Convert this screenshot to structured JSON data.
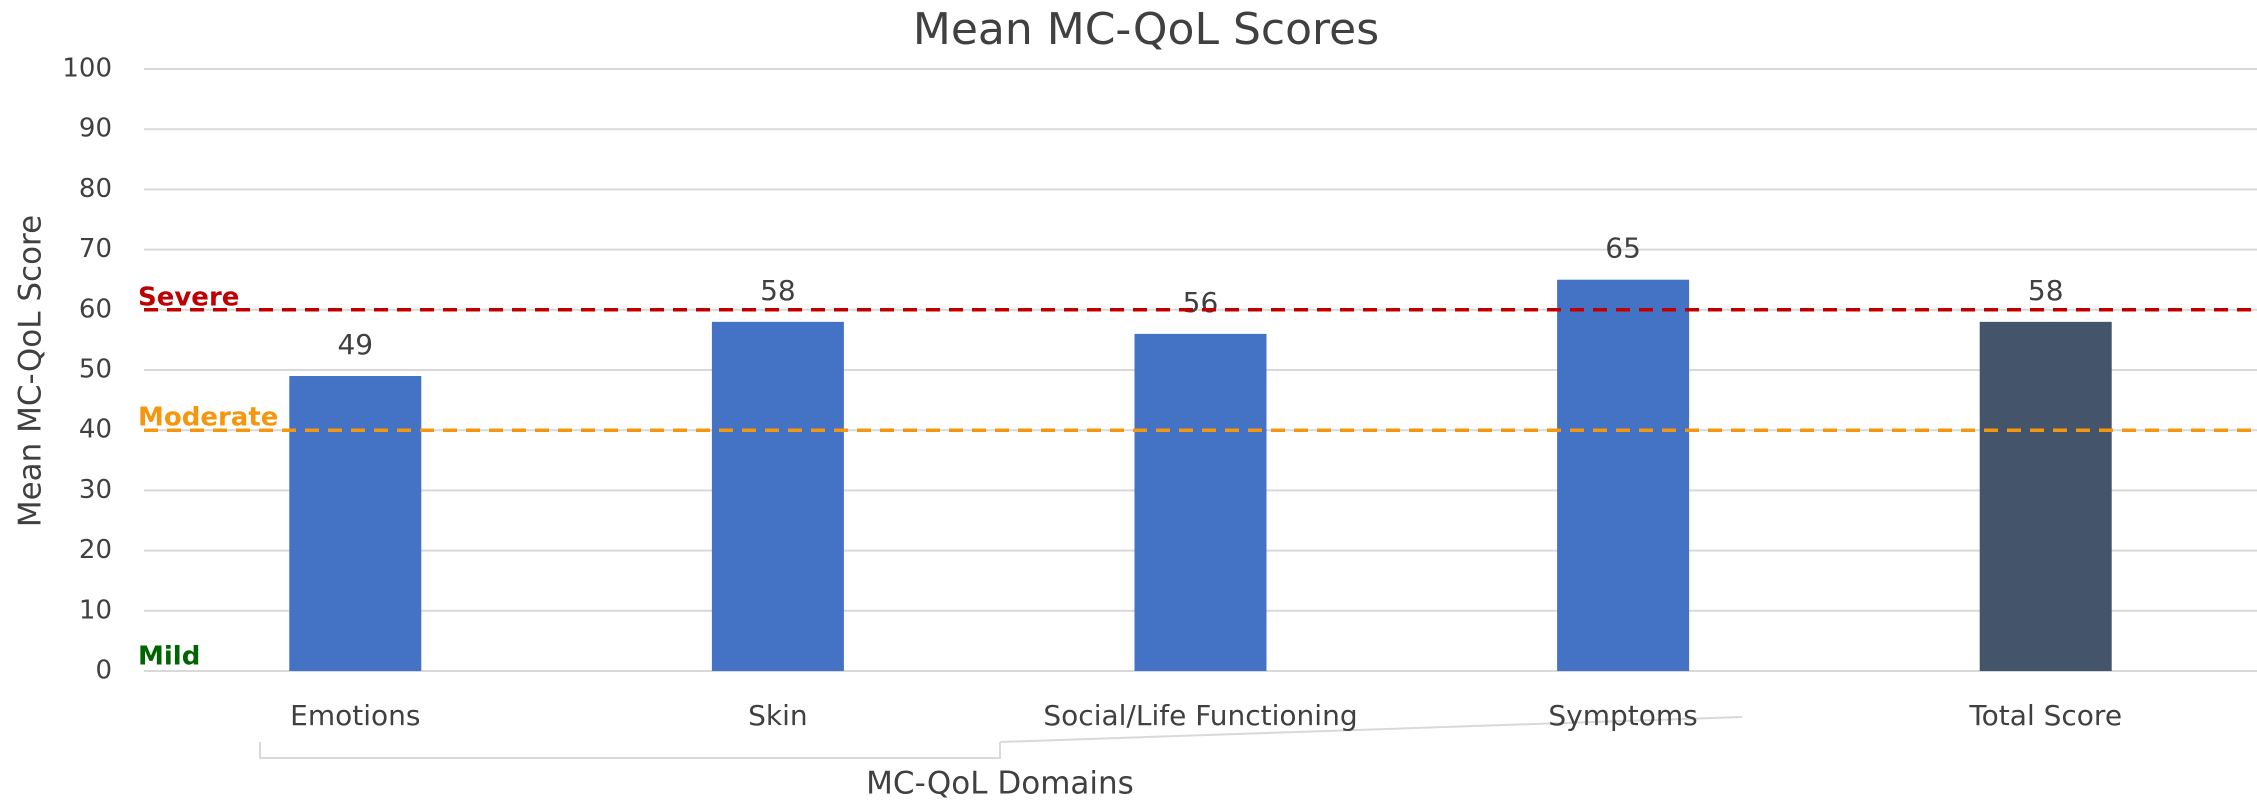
{
  "chart_data": {
    "type": "bar",
    "title": "Mean MC-QoL Scores",
    "x_label": "MC-QoL Domains",
    "y_label": "Mean MC-QoL Score",
    "categories": [
      "Emotions",
      "Skin",
      "Social/Life Functioning",
      "Symptoms",
      "Total Score"
    ],
    "values": [
      49,
      58,
      56,
      65,
      58
    ],
    "colors": [
      "#4472c4",
      "#4472c4",
      "#4472c4",
      "#4472c4",
      "#44546a"
    ],
    "ylim": [
      0,
      100
    ],
    "yticks": [
      0,
      10,
      20,
      30,
      40,
      50,
      60,
      70,
      80,
      90,
      100
    ],
    "grid": true,
    "reference_lines": [
      {
        "label": "Severe",
        "value": 60,
        "color": "#c00000",
        "line": true
      },
      {
        "label": "Moderate",
        "value": 40,
        "color": "#f4970f",
        "line": true
      },
      {
        "label": "Mild",
        "value": 0,
        "color": "#006400",
        "line": false
      }
    ]
  }
}
